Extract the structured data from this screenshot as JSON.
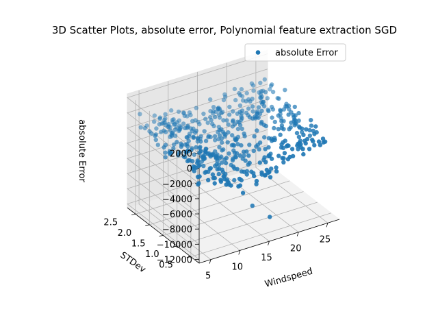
{
  "chart_data": {
    "type": "scatter3d",
    "title": "3D Scatter Plots, absolute error, Polynomial feature extraction SGD",
    "xlabel": "Windspeed",
    "ylabel": "STDev",
    "zlabel": "absolute Error",
    "xlim": [
      3,
      27
    ],
    "ylim": [
      0.2,
      2.8
    ],
    "zlim": [
      -12500,
      2500
    ],
    "x_ticks": [
      5,
      10,
      15,
      20,
      25
    ],
    "y_ticks": [
      0.5,
      1.0,
      1.5,
      2.0,
      2.5
    ],
    "z_ticks": [
      2000,
      0,
      -2000,
      -4000,
      -6000,
      -8000,
      -10000,
      -12000
    ],
    "x_tick_labels": [
      "5",
      "10",
      "15",
      "20",
      "25"
    ],
    "y_tick_labels": [
      "0.5",
      "1.0",
      "1.5",
      "2.0",
      "2.5"
    ],
    "z_tick_labels": [
      "2000",
      "0",
      "−2000",
      "−4000",
      "−6000",
      "−8000",
      "−10000",
      "−12000"
    ],
    "grid": true,
    "legend": {
      "position": "top-right",
      "entries": [
        "absolute Error"
      ]
    },
    "series": [
      {
        "name": "absolute Error",
        "color": "#1f77b4",
        "outliers": [
          {
            "x": 14.0,
            "y": 0.6,
            "z": -8700
          },
          {
            "x": 16.5,
            "y": 0.5,
            "z": -10500
          }
        ],
        "sample_count": 520
      }
    ]
  }
}
